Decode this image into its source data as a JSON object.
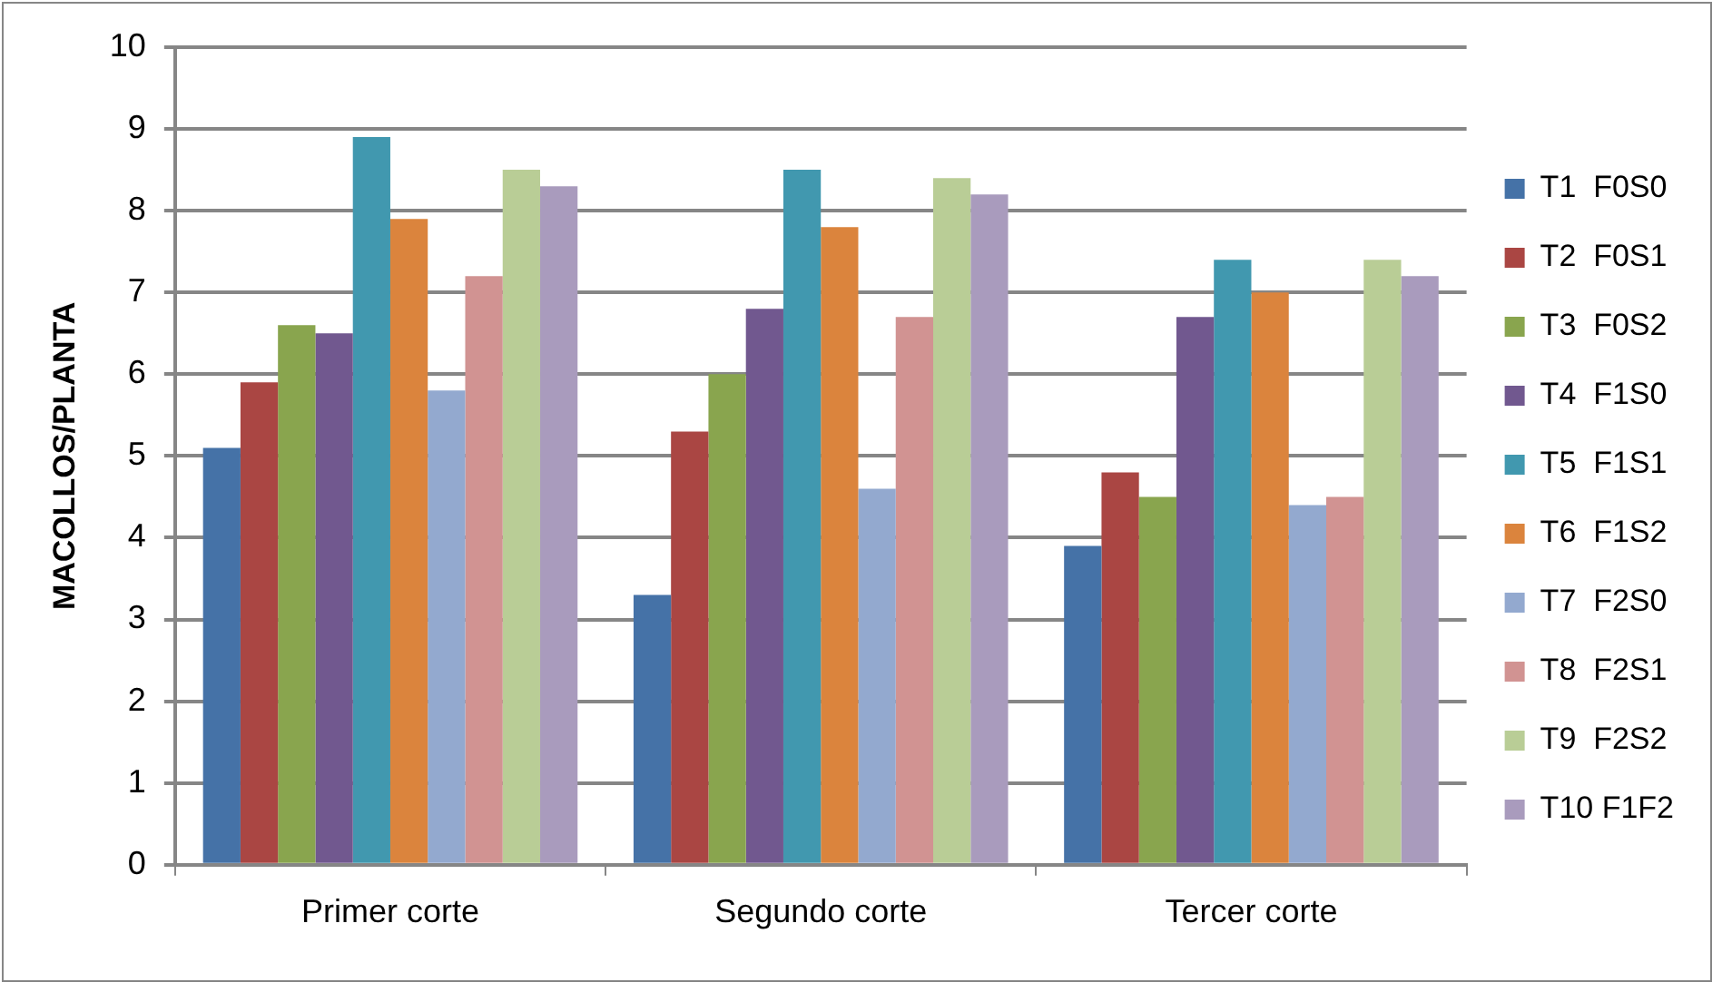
{
  "chart_data": {
    "type": "bar",
    "ylabel": "MACOLLOS/PLANTA",
    "categories": [
      "Primer corte",
      "Segundo corte",
      "Tercer corte"
    ],
    "series": [
      {
        "name": "T1  F0S0",
        "color": "#4572a7",
        "values": [
          5.1,
          3.3,
          3.9
        ]
      },
      {
        "name": "T2  F0S1",
        "color": "#aa4643",
        "values": [
          5.9,
          5.3,
          4.8
        ]
      },
      {
        "name": "T3  F0S2",
        "color": "#89a54e",
        "values": [
          6.6,
          6.0,
          4.5
        ]
      },
      {
        "name": "T4  F1S0",
        "color": "#71588f",
        "values": [
          6.5,
          6.8,
          6.7
        ]
      },
      {
        "name": "T5  F1S1",
        "color": "#4198af",
        "values": [
          8.9,
          8.5,
          7.4
        ]
      },
      {
        "name": "T6  F1S2",
        "color": "#db843d",
        "values": [
          7.9,
          7.8,
          7.0
        ]
      },
      {
        "name": "T7  F2S0",
        "color": "#93a9cf",
        "values": [
          5.8,
          4.6,
          4.4
        ]
      },
      {
        "name": "T8  F2S1",
        "color": "#d19392",
        "values": [
          7.2,
          6.7,
          4.5
        ]
      },
      {
        "name": "T9  F2S2",
        "color": "#b9cd96",
        "values": [
          8.5,
          8.4,
          7.4
        ]
      },
      {
        "name": "T10 F1F2",
        "color": "#a99bbd",
        "values": [
          8.3,
          8.2,
          7.2
        ]
      }
    ],
    "ylim": [
      0,
      10
    ],
    "yticks": [
      0,
      1,
      2,
      3,
      4,
      5,
      6,
      7,
      8,
      9,
      10
    ],
    "grid": "y",
    "legend": "right"
  }
}
